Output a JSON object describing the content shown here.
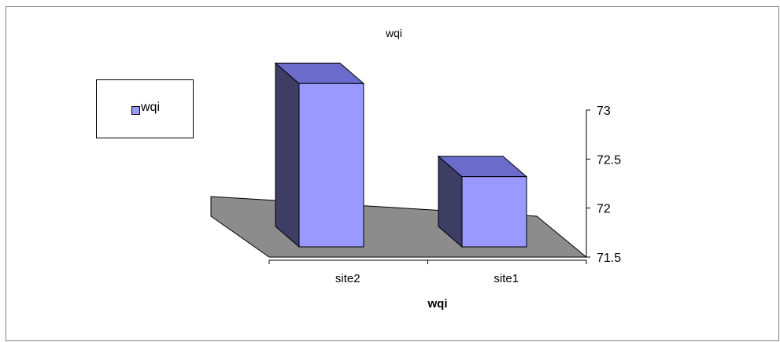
{
  "chart_data": {
    "type": "bar",
    "title": "wqi",
    "xlabel": "wqi",
    "ylabel": "",
    "categories": [
      "site2",
      "site1"
    ],
    "series": [
      {
        "name": "wqi",
        "values": [
          73.15,
          72.2
        ]
      }
    ],
    "ylim": [
      71.5,
      73
    ],
    "yticks": [
      73,
      72.5,
      72,
      71.5
    ],
    "ytick_labels": [
      "73",
      "72.5",
      "72",
      "71.5"
    ],
    "grid": false,
    "legend_position": "left",
    "three_d": true,
    "colors": {
      "bar_front": "#9999ff",
      "bar_top": "#6b6bcc",
      "bar_side": "#3d3d66",
      "floor": "#8c8c8c"
    }
  }
}
